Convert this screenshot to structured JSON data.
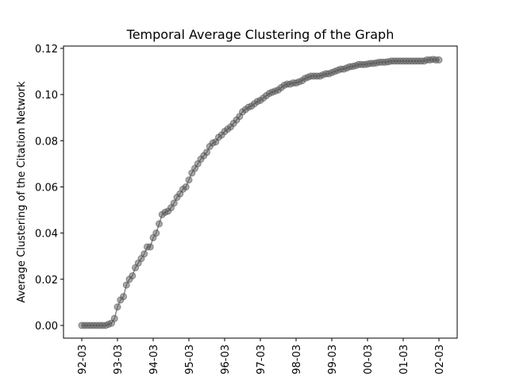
{
  "chart_data": {
    "type": "line",
    "title": "Temporal Average Clustering of the Graph",
    "y_label": "Average Clustering of the Citation Network",
    "categories": [
      "92-03",
      null,
      null,
      null,
      null,
      null,
      null,
      null,
      null,
      null,
      null,
      null,
      "93-03",
      null,
      null,
      null,
      null,
      null,
      null,
      null,
      null,
      null,
      null,
      null,
      "94-03",
      null,
      null,
      null,
      null,
      null,
      null,
      null,
      null,
      null,
      null,
      null,
      "95-03",
      null,
      null,
      null,
      null,
      null,
      null,
      null,
      null,
      null,
      null,
      null,
      "96-03",
      null,
      null,
      null,
      null,
      null,
      null,
      null,
      null,
      null,
      null,
      null,
      "97-03",
      null,
      null,
      null,
      null,
      null,
      null,
      null,
      null,
      null,
      null,
      null,
      "98-03",
      null,
      null,
      null,
      null,
      null,
      null,
      null,
      null,
      null,
      null,
      null,
      "99-03",
      null,
      null,
      null,
      null,
      null,
      null,
      null,
      null,
      null,
      null,
      null,
      "00-03",
      null,
      null,
      null,
      null,
      null,
      null,
      null,
      null,
      null,
      null,
      null,
      "01-03",
      null,
      null,
      null,
      null,
      null,
      null,
      null,
      null,
      null,
      null,
      null,
      "02-03"
    ],
    "values": [
      0,
      0,
      0,
      0,
      0,
      0,
      0,
      0,
      0,
      0.0005,
      0.001,
      0.003,
      0.008,
      0.011,
      0.0125,
      0.0175,
      0.02,
      0.0215,
      0.025,
      0.027,
      0.029,
      0.031,
      0.034,
      0.034,
      0.038,
      0.04,
      0.044,
      0.048,
      0.049,
      0.0495,
      0.051,
      0.053,
      0.0555,
      0.057,
      0.059,
      0.06,
      0.063,
      0.066,
      0.068,
      0.07,
      0.072,
      0.0735,
      0.075,
      0.0775,
      0.079,
      0.0795,
      0.0815,
      0.0825,
      0.084,
      0.085,
      0.086,
      0.0875,
      0.089,
      0.0905,
      0.0925,
      0.0935,
      0.0945,
      0.095,
      0.096,
      0.097,
      0.0975,
      0.0985,
      0.0995,
      0.1005,
      0.101,
      0.1015,
      0.102,
      0.103,
      0.104,
      0.1045,
      0.1045,
      0.105,
      0.105,
      0.1055,
      0.106,
      0.107,
      0.1075,
      0.108,
      0.108,
      0.108,
      0.108,
      0.1085,
      0.109,
      0.109,
      0.1095,
      0.11,
      0.1105,
      0.111,
      0.111,
      0.1115,
      0.112,
      0.1122,
      0.1125,
      0.113,
      0.113,
      0.113,
      0.1132,
      0.1135,
      0.1135,
      0.1137,
      0.114,
      0.114,
      0.114,
      0.1142,
      0.1145,
      0.1145,
      0.1145,
      0.1145,
      0.1145,
      0.1145,
      0.1145,
      0.1145,
      0.1145,
      0.1145,
      0.1145,
      0.1145,
      0.115,
      0.115,
      0.1152,
      0.115,
      0.115
    ],
    "color": "#555555",
    "ylim": [
      -0.0055,
      0.121
    ],
    "yticks": [
      {
        "value": 0,
        "label": "0.00"
      },
      0.02,
      0.04,
      0.06,
      0.08,
      {
        "value": 0.1,
        "label": "0.10"
      },
      0.12
    ]
  }
}
